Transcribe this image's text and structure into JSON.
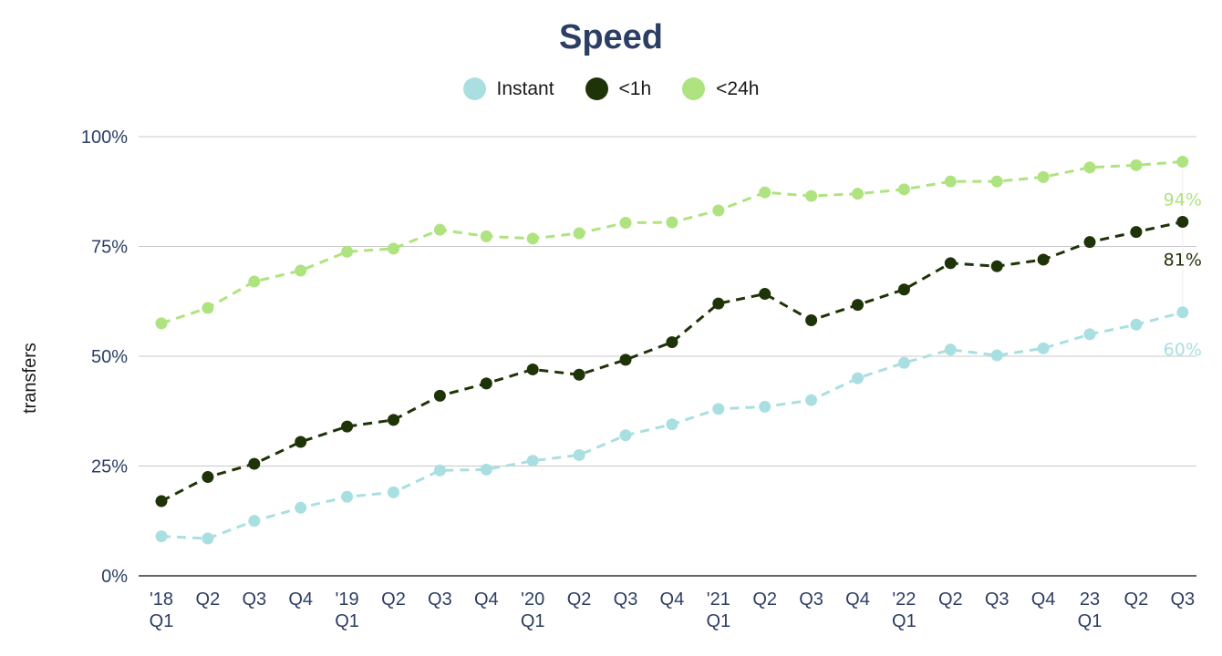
{
  "chart_data": {
    "type": "line",
    "title": "Speed",
    "ylabel": "transfers",
    "xlabel": "",
    "ylim": [
      0,
      100
    ],
    "y_ticks": [
      "0%",
      "25%",
      "50%",
      "75%",
      "100%"
    ],
    "y_tick_values": [
      0,
      25,
      50,
      75,
      100
    ],
    "grid": true,
    "legend_position": "top-center",
    "categories": [
      "'18 Q1",
      "Q2",
      "Q3",
      "Q4",
      "'19 Q1",
      "Q2",
      "Q3",
      "Q4",
      "'20 Q1",
      "Q2",
      "Q3",
      "Q4",
      "'21 Q1",
      "Q2",
      "Q3",
      "Q4",
      "'22 Q1",
      "Q2",
      "Q3",
      "Q4",
      "23 Q1",
      "Q2",
      "Q3"
    ],
    "tick_labels": [
      [
        "'18",
        "Q1"
      ],
      [
        "Q2"
      ],
      [
        "Q3"
      ],
      [
        "Q4"
      ],
      [
        "'19",
        "Q1"
      ],
      [
        "Q2"
      ],
      [
        "Q3"
      ],
      [
        "Q4"
      ],
      [
        "'20",
        "Q1"
      ],
      [
        "Q2"
      ],
      [
        "Q3"
      ],
      [
        "Q4"
      ],
      [
        "'21",
        "Q1"
      ],
      [
        "Q2"
      ],
      [
        "Q3"
      ],
      [
        "Q4"
      ],
      [
        "'22",
        "Q1"
      ],
      [
        "Q2"
      ],
      [
        "Q3"
      ],
      [
        "Q4"
      ],
      [
        "23",
        "Q1"
      ],
      [
        "Q2"
      ],
      [
        "Q3"
      ]
    ],
    "series": [
      {
        "name": "Instant",
        "color": "#aadfe1",
        "end_label": "60%",
        "values": [
          9,
          8.5,
          12.5,
          15.5,
          18,
          19,
          24,
          24.2,
          26.2,
          27.5,
          32,
          34.5,
          38,
          38.5,
          40,
          45,
          48.5,
          51.5,
          50.2,
          51.8,
          55,
          57.2,
          60
        ]
      },
      {
        "name": "<1h",
        "color": "#1f3308",
        "end_label": "81%",
        "values": [
          17,
          22.5,
          25.5,
          30.5,
          34,
          35.5,
          41,
          43.8,
          47,
          45.8,
          49.2,
          53.2,
          62,
          64.2,
          58.2,
          61.7,
          65.2,
          71.2,
          70.5,
          72,
          76,
          78.3,
          80.6
        ]
      },
      {
        "name": "<24h",
        "color": "#aee37f",
        "end_label": "94%",
        "values": [
          57.5,
          61,
          67,
          69.5,
          73.8,
          74.5,
          78.8,
          77.3,
          76.8,
          78,
          80.4,
          80.5,
          83.2,
          87.3,
          86.5,
          87,
          88,
          89.8,
          89.8,
          90.8,
          93,
          93.5,
          94.3
        ]
      }
    ]
  }
}
